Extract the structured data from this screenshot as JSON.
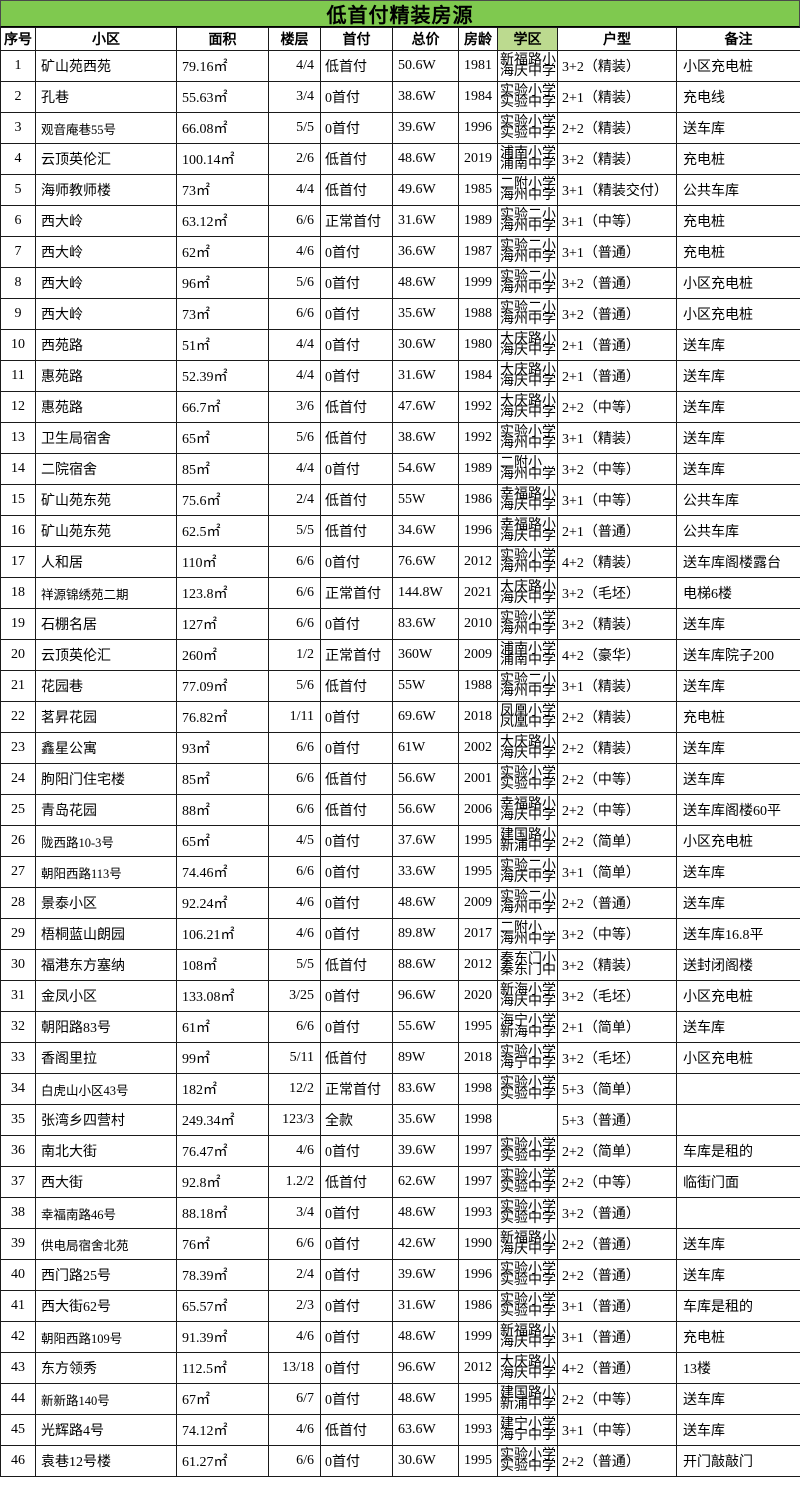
{
  "title": "低首付精装房源",
  "colors": {
    "title_bg": "#7FC94F",
    "school_header_bg": "#BCDA8F",
    "border": "#1A1A1A",
    "table_bg": "#FFFFFF"
  },
  "columns": [
    "序号",
    "小区",
    "面积",
    "楼层",
    "首付",
    "总价",
    "房龄",
    "学区",
    "户型",
    "备注"
  ],
  "rows": [
    {
      "no": "1",
      "community": "矿山苑西苑",
      "area": "79.16㎡",
      "floor": "4/4",
      "down_payment": "低首付",
      "total_price": "50.6W",
      "year": "1981",
      "school": [
        "新福路小",
        "海庆中学"
      ],
      "layout": "3+2（精装）",
      "note": "小区充电桩"
    },
    {
      "no": "2",
      "community": "孔巷",
      "area": "55.63㎡",
      "floor": "3/4",
      "down_payment": "0首付",
      "total_price": "38.6W",
      "year": "1984",
      "school": [
        "实验小学",
        "实验中学"
      ],
      "layout": "2+1（精装）",
      "note": "充电线"
    },
    {
      "no": "3",
      "community": "观音庵巷55号",
      "area": "66.08㎡",
      "floor": "5/5",
      "down_payment": "0首付",
      "total_price": "39.6W",
      "year": "1996",
      "school": [
        "实验小学",
        "实验中学"
      ],
      "layout": "2+2（精装）",
      "note": "送车库"
    },
    {
      "no": "4",
      "community": "云顶英伦汇",
      "area": "100.14㎡",
      "floor": "2/6",
      "down_payment": "低首付",
      "total_price": "48.6W",
      "year": "2019",
      "school": [
        "浦南小学",
        "浦南中学"
      ],
      "layout": "3+2（精装）",
      "note": "充电桩"
    },
    {
      "no": "5",
      "community": "海师教师楼",
      "area": "73㎡",
      "floor": "4/4",
      "down_payment": "低首付",
      "total_price": "49.6W",
      "year": "1985",
      "school": [
        "二附小学",
        "海州中学"
      ],
      "layout": "3+1（精装交付）",
      "note": "公共车库"
    },
    {
      "no": "6",
      "community": "西大岭",
      "area": "63.12㎡",
      "floor": "6/6",
      "down_payment": "正常首付",
      "total_price": "31.6W",
      "year": "1989",
      "school": [
        "实验二小",
        "海州中学"
      ],
      "layout": "3+1（中等）",
      "note": "充电桩"
    },
    {
      "no": "7",
      "community": "西大岭",
      "area": "62㎡",
      "floor": "4/6",
      "down_payment": "0首付",
      "total_price": "36.6W",
      "year": "1987",
      "school": [
        "实验二小",
        "海州中学"
      ],
      "layout": "3+1（普通）",
      "note": "充电桩"
    },
    {
      "no": "8",
      "community": "西大岭",
      "area": "96㎡",
      "floor": "5/6",
      "down_payment": "0首付",
      "total_price": "48.6W",
      "year": "1999",
      "school": [
        "实验二小",
        "海州中学"
      ],
      "layout": "3+2（普通）",
      "note": "小区充电桩"
    },
    {
      "no": "9",
      "community": "西大岭",
      "area": "73㎡",
      "floor": "6/6",
      "down_payment": "0首付",
      "total_price": "35.6W",
      "year": "1988",
      "school": [
        "实验二小",
        "海州中学"
      ],
      "layout": "3+2（普通）",
      "note": "小区充电桩"
    },
    {
      "no": "10",
      "community": "西苑路",
      "area": "51㎡",
      "floor": "4/4",
      "down_payment": "0首付",
      "total_price": "30.6W",
      "year": "1980",
      "school": [
        "大庆路小",
        "海庆中学"
      ],
      "layout": "2+1（普通）",
      "note": "送车库"
    },
    {
      "no": "11",
      "community": "惠苑路",
      "area": "52.39㎡",
      "floor": "4/4",
      "down_payment": "0首付",
      "total_price": "31.6W",
      "year": "1984",
      "school": [
        "大庆路小",
        "海庆中学"
      ],
      "layout": "2+1（普通）",
      "note": "送车库"
    },
    {
      "no": "12",
      "community": "惠苑路",
      "area": "66.7㎡",
      "floor": "3/6",
      "down_payment": "低首付",
      "total_price": "47.6W",
      "year": "1992",
      "school": [
        "大庆路小",
        "海庆中学"
      ],
      "layout": "2+2（中等）",
      "note": "送车库"
    },
    {
      "no": "13",
      "community": "卫生局宿舍",
      "area": "65㎡",
      "floor": "5/6",
      "down_payment": "低首付",
      "total_price": "38.6W",
      "year": "1992",
      "school": [
        "实验小学",
        "海州中学"
      ],
      "layout": "3+1（精装）",
      "note": "送车库"
    },
    {
      "no": "14",
      "community": "二院宿舍",
      "area": "85㎡",
      "floor": "4/4",
      "down_payment": "0首付",
      "total_price": "54.6W",
      "year": "1989",
      "school": [
        "二附小",
        "海州中学"
      ],
      "layout": "3+2（中等）",
      "note": "送车库"
    },
    {
      "no": "15",
      "community": "矿山苑东苑",
      "area": "75.6㎡",
      "floor": "2/4",
      "down_payment": "低首付",
      "total_price": "55W",
      "year": "1986",
      "school": [
        "幸福路小",
        "海庆中学"
      ],
      "layout": "3+1（中等）",
      "note": "公共车库"
    },
    {
      "no": "16",
      "community": "矿山苑东苑",
      "area": "62.5㎡",
      "floor": "5/5",
      "down_payment": "低首付",
      "total_price": "34.6W",
      "year": "1996",
      "school": [
        "幸福路小",
        "海庆中学"
      ],
      "layout": "2+1（普通）",
      "note": "公共车库"
    },
    {
      "no": "17",
      "community": "人和居",
      "area": "110㎡",
      "floor": "6/6",
      "down_payment": "0首付",
      "total_price": "76.6W",
      "year": "2012",
      "school": [
        "实验小学",
        "海州中学"
      ],
      "layout": "4+2（精装）",
      "note": "送车库阁楼露台"
    },
    {
      "no": "18",
      "community": "祥源锦绣苑二期",
      "area": "123.8㎡",
      "floor": "6/6",
      "down_payment": "正常首付",
      "total_price": "144.8W",
      "year": "2021",
      "school": [
        "大庆路小",
        "海庆中学"
      ],
      "layout": "3+2（毛坯）",
      "note": "电梯6楼"
    },
    {
      "no": "19",
      "community": "石棚名居",
      "area": "127㎡",
      "floor": "6/6",
      "down_payment": "0首付",
      "total_price": "83.6W",
      "year": "2010",
      "school": [
        "实验小学",
        "海州中学"
      ],
      "layout": "3+2（精装）",
      "note": "送车库"
    },
    {
      "no": "20",
      "community": "云顶英伦汇",
      "area": "260㎡",
      "floor": "1/2",
      "down_payment": "正常首付",
      "total_price": "360W",
      "year": "2009",
      "school": [
        "浦南小学",
        "浦南中学"
      ],
      "layout": "4+2（豪华）",
      "note": "送车库院子200"
    },
    {
      "no": "21",
      "community": "花园巷",
      "area": "77.09㎡",
      "floor": "5/6",
      "down_payment": "低首付",
      "total_price": "55W",
      "year": "1988",
      "school": [
        "实验二小",
        "海州中学"
      ],
      "layout": "3+1（精装）",
      "note": "送车库"
    },
    {
      "no": "22",
      "community": "茗昇花园",
      "area": "76.82㎡",
      "floor": "1/11",
      "down_payment": "0首付",
      "total_price": "69.6W",
      "year": "2018",
      "school": [
        "凤凰小学",
        "凤凰中学"
      ],
      "layout": "2+2（精装）",
      "note": "充电桩"
    },
    {
      "no": "23",
      "community": "鑫星公寓",
      "area": "93㎡",
      "floor": "6/6",
      "down_payment": "0首付",
      "total_price": "61W",
      "year": "2002",
      "school": [
        "大庆路小",
        "海庆中学"
      ],
      "layout": "2+2（精装）",
      "note": "送车库"
    },
    {
      "no": "24",
      "community": "朐阳门住宅楼",
      "area": "85㎡",
      "floor": "6/6",
      "down_payment": "低首付",
      "total_price": "56.6W",
      "year": "2001",
      "school": [
        "实验小学",
        "实验中学"
      ],
      "layout": "2+2（中等）",
      "note": "送车库"
    },
    {
      "no": "25",
      "community": "青岛花园",
      "area": "88㎡",
      "floor": "6/6",
      "down_payment": "低首付",
      "total_price": "56.6W",
      "year": "2006",
      "school": [
        "幸福路小",
        "海庆中学"
      ],
      "layout": "2+2（中等）",
      "note": "送车库阁楼60平"
    },
    {
      "no": "26",
      "community": "陇西路10-3号",
      "area": "65㎡",
      "floor": "4/5",
      "down_payment": "0首付",
      "total_price": "37.6W",
      "year": "1995",
      "school": [
        "建国路小",
        "新浦中学"
      ],
      "layout": "2+2（简单）",
      "note": "小区充电桩"
    },
    {
      "no": "27",
      "community": "朝阳西路113号",
      "area": "74.46㎡",
      "floor": "6/6",
      "down_payment": "0首付",
      "total_price": "33.6W",
      "year": "1995",
      "school": [
        "实验二小",
        "海庆中学"
      ],
      "layout": "3+1（简单）",
      "note": "送车库"
    },
    {
      "no": "28",
      "community": "景泰小区",
      "area": "92.24㎡",
      "floor": "4/6",
      "down_payment": "0首付",
      "total_price": "48.6W",
      "year": "2009",
      "school": [
        "实验二小",
        "海州中学"
      ],
      "layout": "2+2（普通）",
      "note": "送车库"
    },
    {
      "no": "29",
      "community": "梧桐蓝山朗园",
      "area": "106.21㎡",
      "floor": "4/6",
      "down_payment": "0首付",
      "total_price": "89.8W",
      "year": "2017",
      "school": [
        "二附小",
        "海州中学"
      ],
      "layout": "3+2（中等）",
      "note": "送车库16.8平"
    },
    {
      "no": "30",
      "community": "福港东方塞纳",
      "area": "108㎡",
      "floor": "5/5",
      "down_payment": "低首付",
      "total_price": "88.6W",
      "year": "2012",
      "school": [
        "秦东门小",
        "秦东门中"
      ],
      "layout": "3+2（精装）",
      "note": "送封闭阁楼"
    },
    {
      "no": "31",
      "community": "金凤小区",
      "area": "133.08㎡",
      "floor": "3/25",
      "down_payment": "0首付",
      "total_price": "96.6W",
      "year": "2020",
      "school": [
        "新海小学",
        "海庆中学"
      ],
      "layout": "3+2（毛坯）",
      "note": "小区充电桩"
    },
    {
      "no": "32",
      "community": "朝阳路83号",
      "area": "61㎡",
      "floor": "6/6",
      "down_payment": "0首付",
      "total_price": "55.6W",
      "year": "1995",
      "school": [
        "海宁小学",
        "新海中学"
      ],
      "layout": "2+1（简单）",
      "note": "送车库"
    },
    {
      "no": "33",
      "community": "香阁里拉",
      "area": "99㎡",
      "floor": "5/11",
      "down_payment": "低首付",
      "total_price": "89W",
      "year": "2018",
      "school": [
        "实验小学",
        "海宁中学"
      ],
      "layout": "3+2（毛坯）",
      "note": "小区充电桩"
    },
    {
      "no": "34",
      "community": "白虎山小区43号",
      "area": "182㎡",
      "floor": "12/2",
      "down_payment": "正常首付",
      "total_price": "83.6W",
      "year": "1998",
      "school": [
        "实验小学",
        "实验中学"
      ],
      "layout": "5+3（简单）",
      "note": ""
    },
    {
      "no": "35",
      "community": "张湾乡四营村",
      "area": "249.34㎡",
      "floor": "123/3",
      "down_payment": "全款",
      "total_price": "35.6W",
      "year": "1998",
      "school": [],
      "layout": "5+3（普通）",
      "note": ""
    },
    {
      "no": "36",
      "community": "南北大街",
      "area": "76.47㎡",
      "floor": "4/6",
      "down_payment": "0首付",
      "total_price": "39.6W",
      "year": "1997",
      "school": [
        "实验小学",
        "实验中学"
      ],
      "layout": "2+2（简单）",
      "note": "车库是租的"
    },
    {
      "no": "37",
      "community": "西大街",
      "area": "92.8㎡",
      "floor": "1.2/2",
      "down_payment": "低首付",
      "total_price": "62.6W",
      "year": "1997",
      "school": [
        "实验小学",
        "实验中学"
      ],
      "layout": "2+2（中等）",
      "note": "临街门面"
    },
    {
      "no": "38",
      "community": "幸福南路46号",
      "area": "88.18㎡",
      "floor": "3/4",
      "down_payment": "0首付",
      "total_price": "48.6W",
      "year": "1993",
      "school": [
        "实验小学",
        "实验中学"
      ],
      "layout": "3+2（普通）",
      "note": ""
    },
    {
      "no": "39",
      "community": "供电局宿舍北苑",
      "area": "76㎡",
      "floor": "6/6",
      "down_payment": "0首付",
      "total_price": "42.6W",
      "year": "1990",
      "school": [
        "新福路小",
        "海庆中学"
      ],
      "layout": "2+2（普通）",
      "note": "送车库"
    },
    {
      "no": "40",
      "community": "西门路25号",
      "area": "78.39㎡",
      "floor": "2/4",
      "down_payment": "0首付",
      "total_price": "39.6W",
      "year": "1996",
      "school": [
        "实验小学",
        "实验中学"
      ],
      "layout": "2+2（普通）",
      "note": "送车库"
    },
    {
      "no": "41",
      "community": "西大街62号",
      "area": "65.57㎡",
      "floor": "2/3",
      "down_payment": "0首付",
      "total_price": "31.6W",
      "year": "1986",
      "school": [
        "实验小学",
        "实验中学"
      ],
      "layout": "3+1（普通）",
      "note": "车库是租的"
    },
    {
      "no": "42",
      "community": "朝阳西路109号",
      "area": "91.39㎡",
      "floor": "4/6",
      "down_payment": "0首付",
      "total_price": "48.6W",
      "year": "1999",
      "school": [
        "新福路小",
        "海庆中学"
      ],
      "layout": "3+1（普通）",
      "note": "充电桩"
    },
    {
      "no": "43",
      "community": "东方领秀",
      "area": "112.5㎡",
      "floor": "13/18",
      "down_payment": "0首付",
      "total_price": "96.6W",
      "year": "2012",
      "school": [
        "大庆路小",
        "海庆中学"
      ],
      "layout": "4+2（普通）",
      "note": "13楼"
    },
    {
      "no": "44",
      "community": "新新路140号",
      "area": "67㎡",
      "floor": "6/7",
      "down_payment": "0首付",
      "total_price": "48.6W",
      "year": "1995",
      "school": [
        "建国路小",
        "新浦中学"
      ],
      "layout": "2+2（中等）",
      "note": "送车库"
    },
    {
      "no": "45",
      "community": "光辉路4号",
      "area": "74.12㎡",
      "floor": "4/6",
      "down_payment": "低首付",
      "total_price": "63.6W",
      "year": "1993",
      "school": [
        "建宁小学",
        "海宁中学"
      ],
      "layout": "3+1（中等）",
      "note": "送车库"
    },
    {
      "no": "46",
      "community": "袁巷12号楼",
      "area": "61.27㎡",
      "floor": "6/6",
      "down_payment": "0首付",
      "total_price": "30.6W",
      "year": "1995",
      "school": [
        "实验小学",
        "实验中学"
      ],
      "layout": "2+2（普通）",
      "note": "开门敲敲门"
    }
  ]
}
